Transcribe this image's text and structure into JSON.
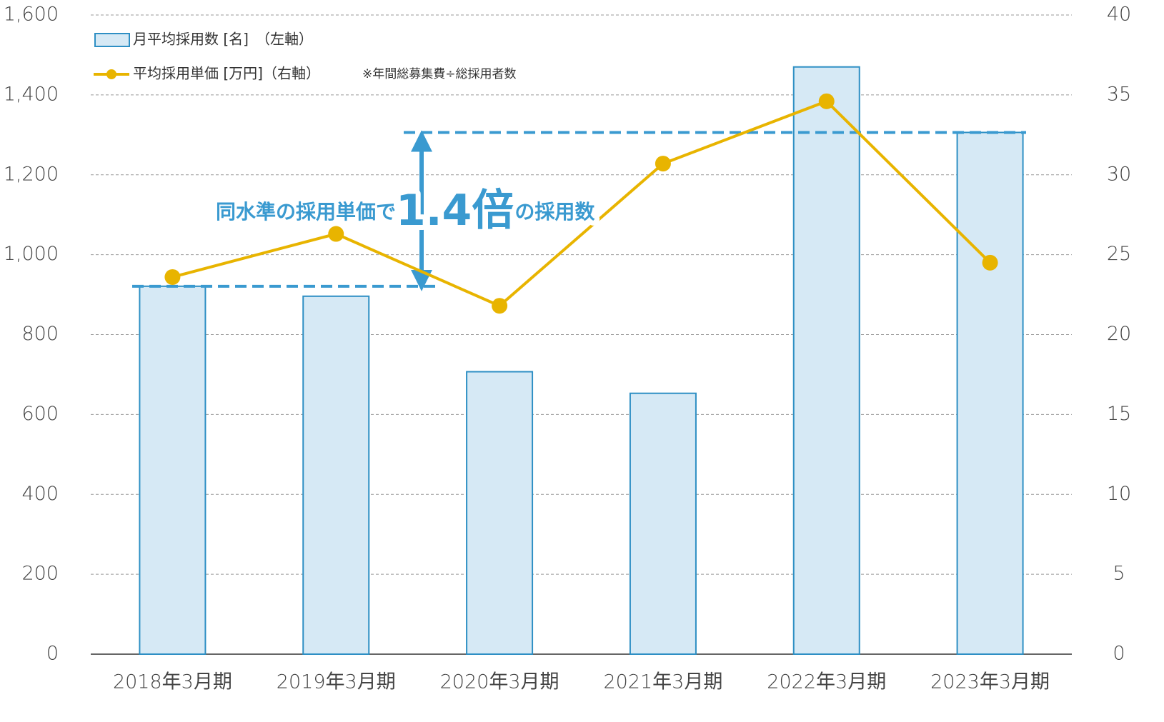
{
  "chart_data": {
    "type": "bar_line",
    "categories": [
      "2018年3月期",
      "2019年3月期",
      "2020年3月期",
      "2021年3月期",
      "2022年3月期",
      "2023年3月期"
    ],
    "series": [
      {
        "name": "月平均採用数 [名]　（左軸）",
        "type": "bar",
        "color": "#d6e9f5",
        "edge_color": "#2e8fc4",
        "values": [
          921,
          896,
          707,
          653,
          1470,
          1306
        ]
      },
      {
        "name": "平均採用単価 [万円]（右軸）",
        "type": "line",
        "axis": "y2",
        "color": "#e8b400",
        "values": [
          23.6,
          26.3,
          21.8,
          30.7,
          34.6,
          24.5
        ]
      }
    ],
    "note": "※年間総募集費÷総採用者数",
    "annotation": {
      "text_before": "同水準の採用単価で",
      "text_big": "1.4倍",
      "text_after": "の採用数",
      "color": "#3a9ad0"
    },
    "ylim": [
      0,
      1600
    ],
    "yticks": [
      0,
      200,
      400,
      600,
      800,
      {
        "value": 1000,
        "label": "1,000"
      },
      {
        "value": 1200,
        "label": "1,200"
      },
      {
        "value": 1400,
        "label": "1,400"
      },
      {
        "value": 1600,
        "label": "1,600"
      }
    ],
    "y2lim": [
      0,
      40
    ],
    "y2ticks": [
      0,
      5,
      10,
      15,
      20,
      25,
      30,
      35,
      40
    ],
    "grid": true
  }
}
